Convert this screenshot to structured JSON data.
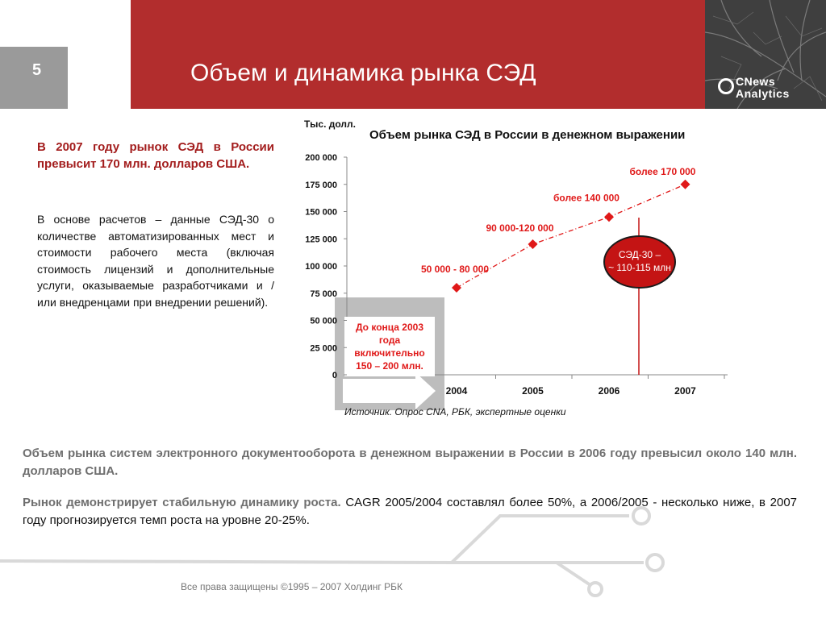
{
  "header": {
    "slide_number": "5",
    "title": "Объем и динамика рынка СЭД",
    "logo_line1": "CNews",
    "logo_line2": "Analytics"
  },
  "left": {
    "heading": "В 2007 году рынок СЭД в России превысит 170 млн. долларов США.",
    "body": "В основе расчетов – данные СЭД-30 о количестве автоматизированных мест и стоимости рабочего места (включая стоимость лицензий и дополнительные услуги, оказываемые разработчиками и / или внедренцами при внедрении решений)."
  },
  "chart_data": {
    "type": "line",
    "title": "Объем рынка СЭД в России в денежном выражении",
    "ylabel": "Тыс. долл.",
    "xlabel": "",
    "categories": [
      "2004",
      "2005",
      "2006",
      "2007"
    ],
    "values": [
      80000,
      120000,
      145000,
      175000
    ],
    "ylim": [
      0,
      200000
    ],
    "yticks": [
      0,
      25000,
      50000,
      75000,
      100000,
      125000,
      150000,
      175000,
      200000
    ],
    "ytick_labels": [
      "0",
      "25 000",
      "50 000",
      "75 000",
      "100 000",
      "125 000",
      "150 000",
      "175 000",
      "200 000"
    ],
    "data_labels": [
      "50 000 - 80 000",
      "90 000-120 000",
      "более 140 000",
      "более 170 000"
    ],
    "grid": false,
    "series_color": "#e01919",
    "annotation_box": {
      "lines": [
        "До конца 2003",
        "года",
        "включительно",
        "150 – 200 млн."
      ],
      "color": "#e01919"
    },
    "annotation_circle": {
      "lines": [
        "СЭД-30 –",
        "~ 110-115 млн"
      ],
      "fill": "#c41414"
    },
    "source": "Источник. Опрос CNA, РБК, экспертные оценки"
  },
  "bottom": {
    "para1": "Объем рынка систем электронного документооборота в денежном выражении в России в 2006 году превысил около 140 млн. долларов США.",
    "para2_lead": "Рынок демонстрирует стабильную динамику роста.",
    "para2_rest": " CAGR 2005/2004 составлял более 50%, а 2006/2005 - несколько ниже, в 2007 году прогнозируется темп роста на уровне 20-25%."
  },
  "footer": {
    "copyright": "Все права защищены ©1995 – 2007 Холдинг РБК"
  }
}
